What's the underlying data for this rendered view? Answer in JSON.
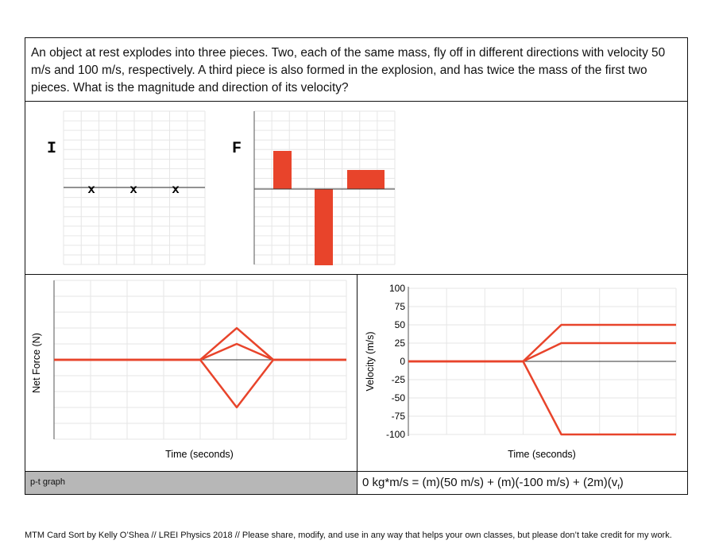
{
  "question": "An object at rest explodes into three pieces. Two, each of the same mass, fly off in different directions with velocity 50 m/s and 100 m/s, respectively. A third piece is also formed in the explosion, and has twice the mass of the first two pieces. What is the magnitude and direction of its velocity?",
  "diagrams": {
    "initial_label": "I",
    "final_label": "F",
    "mark": "x"
  },
  "footer": {
    "left_label": "p-t graph",
    "equation_main": "0 kg*m/s = (m)(50 m/s) + (m)(-100 m/s) + (2m)(v",
    "equation_sub": "f",
    "equation_end": ")"
  },
  "credit": "MTM Card Sort by Kelly O’Shea // LREI Physics 2018 // Please share, modify, and use in any way that helps your own classes, but please don’t take credit for my work.",
  "colors": {
    "series": "#e8442b",
    "grid": "#e6e6e6"
  },
  "chart_data": [
    {
      "type": "bar",
      "title": "",
      "ylabel": "F",
      "categories": [
        "1",
        "2",
        "3"
      ],
      "values": [
        2,
        -4,
        1
      ],
      "ylim": [
        -4,
        4
      ]
    },
    {
      "type": "line",
      "title": "",
      "xlabel": "Time (seconds)",
      "ylabel": "Net Force (N)",
      "x": [
        0,
        1,
        2,
        3,
        4,
        5,
        6,
        7,
        8
      ],
      "xlim": [
        0,
        8
      ],
      "ylim": [
        -4,
        4
      ],
      "grid": true,
      "series": [
        {
          "values": [
            0,
            0,
            0,
            0,
            0,
            1.7,
            0,
            0,
            0
          ]
        },
        {
          "values": [
            0,
            0,
            0,
            0,
            0,
            0.85,
            0,
            0,
            0
          ]
        },
        {
          "values": [
            0,
            0,
            0,
            0,
            0,
            -2.55,
            0,
            0,
            0
          ]
        }
      ]
    },
    {
      "type": "line",
      "title": "",
      "xlabel": "Time (seconds)",
      "ylabel": "Velocity (m/s)",
      "yticks": [
        100,
        75,
        50,
        25,
        0,
        -25,
        -50,
        -75,
        -100
      ],
      "x": [
        0,
        1,
        2,
        3,
        4,
        5,
        6,
        7
      ],
      "xlim": [
        0,
        7
      ],
      "ylim": [
        -100,
        100
      ],
      "grid": true,
      "series": [
        {
          "values": [
            0,
            0,
            0,
            0,
            50,
            50,
            50,
            50
          ]
        },
        {
          "values": [
            0,
            0,
            0,
            0,
            25,
            25,
            25,
            25
          ]
        },
        {
          "values": [
            0,
            0,
            0,
            0,
            -100,
            -100,
            -100,
            -100
          ]
        }
      ]
    }
  ]
}
